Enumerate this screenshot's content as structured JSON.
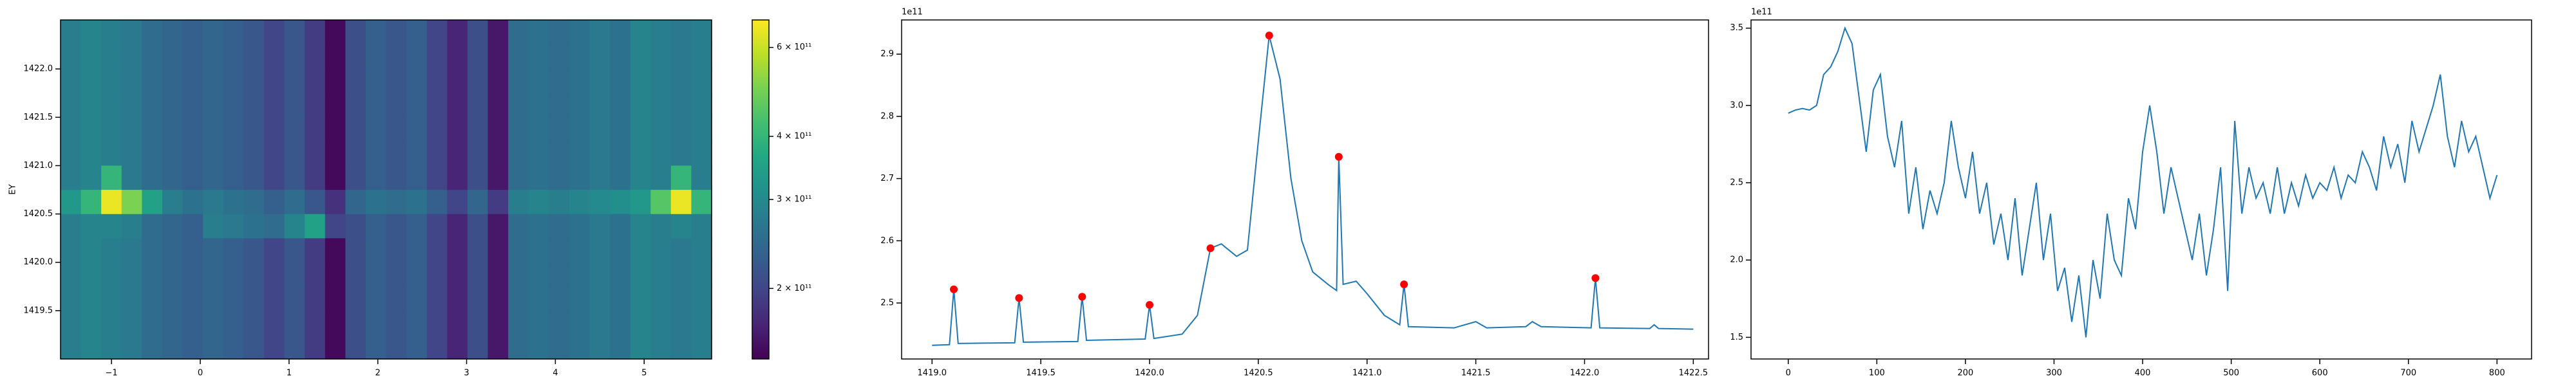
{
  "chart_data": [
    {
      "type": "heatmap",
      "ylabel": "EY",
      "xlim": [
        -1.574,
        5.76
      ],
      "ylim": [
        1419.0,
        1422.507
      ],
      "xticks": [
        {
          "value": -1,
          "label": "−1"
        },
        0,
        1,
        2,
        3,
        4,
        5
      ],
      "yticks": [
        1419.5,
        {
          "value": 1420,
          "label": "1420.0"
        },
        1420.5,
        {
          "value": 1421,
          "label": "1421.0"
        },
        1421.5,
        {
          "value": 1422,
          "label": "1422.0"
        }
      ],
      "colormap": "viridis",
      "zscale": "log",
      "zlim": [
        145000000000.0,
        680000000000.0
      ],
      "zticks": [
        {
          "value": 200000000000.0,
          "label": "2 × 10¹¹"
        },
        {
          "value": 300000000000.0,
          "label": "3 × 10¹¹"
        },
        {
          "value": 400000000000.0,
          "label": "4 × 10¹¹"
        },
        {
          "value": 600000000000.0,
          "label": "6 × 10¹¹"
        }
      ],
      "z": [
        [
          280000000000.0,
          290000000000.0,
          280000000000.0,
          270000000000.0,
          250000000000.0,
          240000000000.0,
          230000000000.0,
          240000000000.0,
          230000000000.0,
          220000000000.0,
          200000000000.0,
          220000000000.0,
          190000000000.0,
          150000000000.0,
          210000000000.0,
          230000000000.0,
          220000000000.0,
          230000000000.0,
          200000000000.0,
          170000000000.0,
          210000000000.0,
          160000000000.0,
          250000000000.0,
          260000000000.0,
          250000000000.0,
          260000000000.0,
          270000000000.0,
          260000000000.0,
          290000000000.0,
          280000000000.0,
          270000000000.0,
          280000000000.0
        ],
        [
          280000000000.0,
          290000000000.0,
          280000000000.0,
          270000000000.0,
          250000000000.0,
          240000000000.0,
          230000000000.0,
          240000000000.0,
          230000000000.0,
          220000000000.0,
          200000000000.0,
          220000000000.0,
          190000000000.0,
          150000000000.0,
          210000000000.0,
          230000000000.0,
          220000000000.0,
          230000000000.0,
          200000000000.0,
          170000000000.0,
          210000000000.0,
          160000000000.0,
          250000000000.0,
          260000000000.0,
          250000000000.0,
          260000000000.0,
          270000000000.0,
          260000000000.0,
          290000000000.0,
          280000000000.0,
          270000000000.0,
          280000000000.0
        ],
        [
          280000000000.0,
          290000000000.0,
          280000000000.0,
          270000000000.0,
          250000000000.0,
          240000000000.0,
          230000000000.0,
          240000000000.0,
          230000000000.0,
          220000000000.0,
          200000000000.0,
          220000000000.0,
          190000000000.0,
          150000000000.0,
          210000000000.0,
          230000000000.0,
          220000000000.0,
          230000000000.0,
          200000000000.0,
          170000000000.0,
          210000000000.0,
          160000000000.0,
          250000000000.0,
          260000000000.0,
          250000000000.0,
          260000000000.0,
          270000000000.0,
          260000000000.0,
          290000000000.0,
          280000000000.0,
          270000000000.0,
          280000000000.0
        ],
        [
          280000000000.0,
          290000000000.0,
          280000000000.0,
          270000000000.0,
          250000000000.0,
          240000000000.0,
          230000000000.0,
          240000000000.0,
          230000000000.0,
          220000000000.0,
          200000000000.0,
          220000000000.0,
          190000000000.0,
          150000000000.0,
          210000000000.0,
          230000000000.0,
          220000000000.0,
          230000000000.0,
          200000000000.0,
          170000000000.0,
          210000000000.0,
          160000000000.0,
          250000000000.0,
          260000000000.0,
          250000000000.0,
          260000000000.0,
          270000000000.0,
          260000000000.0,
          290000000000.0,
          280000000000.0,
          270000000000.0,
          280000000000.0
        ],
        [
          280000000000.0,
          290000000000.0,
          280000000000.0,
          270000000000.0,
          250000000000.0,
          240000000000.0,
          230000000000.0,
          240000000000.0,
          230000000000.0,
          220000000000.0,
          200000000000.0,
          220000000000.0,
          190000000000.0,
          150000000000.0,
          210000000000.0,
          230000000000.0,
          220000000000.0,
          230000000000.0,
          200000000000.0,
          170000000000.0,
          210000000000.0,
          160000000000.0,
          250000000000.0,
          260000000000.0,
          250000000000.0,
          260000000000.0,
          270000000000.0,
          260000000000.0,
          290000000000.0,
          280000000000.0,
          270000000000.0,
          280000000000.0
        ],
        [
          280000000000.0,
          290000000000.0,
          290000000000.0,
          280000000000.0,
          250000000000.0,
          240000000000.0,
          230000000000.0,
          280000000000.0,
          270000000000.0,
          260000000000.0,
          250000000000.0,
          290000000000.0,
          350000000000.0,
          200000000000.0,
          210000000000.0,
          230000000000.0,
          220000000000.0,
          230000000000.0,
          200000000000.0,
          170000000000.0,
          210000000000.0,
          160000000000.0,
          250000000000.0,
          260000000000.0,
          250000000000.0,
          260000000000.0,
          270000000000.0,
          260000000000.0,
          290000000000.0,
          280000000000.0,
          290000000000.0,
          280000000000.0
        ],
        [
          330000000000.0,
          400000000000.0,
          650000000000.0,
          500000000000.0,
          350000000000.0,
          280000000000.0,
          260000000000.0,
          270000000000.0,
          260000000000.0,
          250000000000.0,
          230000000000.0,
          250000000000.0,
          220000000000.0,
          180000000000.0,
          240000000000.0,
          260000000000.0,
          250000000000.0,
          260000000000.0,
          230000000000.0,
          200000000000.0,
          240000000000.0,
          190000000000.0,
          280000000000.0,
          290000000000.0,
          280000000000.0,
          290000000000.0,
          300000000000.0,
          310000000000.0,
          330000000000.0,
          450000000000.0,
          650000000000.0,
          400000000000.0
        ],
        [
          280000000000.0,
          290000000000.0,
          400000000000.0,
          270000000000.0,
          250000000000.0,
          240000000000.0,
          230000000000.0,
          240000000000.0,
          230000000000.0,
          220000000000.0,
          200000000000.0,
          220000000000.0,
          190000000000.0,
          150000000000.0,
          210000000000.0,
          230000000000.0,
          220000000000.0,
          230000000000.0,
          200000000000.0,
          170000000000.0,
          210000000000.0,
          160000000000.0,
          250000000000.0,
          260000000000.0,
          250000000000.0,
          260000000000.0,
          270000000000.0,
          260000000000.0,
          290000000000.0,
          280000000000.0,
          400000000000.0,
          280000000000.0
        ],
        [
          280000000000.0,
          290000000000.0,
          280000000000.0,
          270000000000.0,
          250000000000.0,
          240000000000.0,
          230000000000.0,
          240000000000.0,
          230000000000.0,
          220000000000.0,
          200000000000.0,
          220000000000.0,
          190000000000.0,
          150000000000.0,
          210000000000.0,
          230000000000.0,
          220000000000.0,
          230000000000.0,
          200000000000.0,
          170000000000.0,
          210000000000.0,
          160000000000.0,
          250000000000.0,
          260000000000.0,
          250000000000.0,
          260000000000.0,
          270000000000.0,
          260000000000.0,
          290000000000.0,
          280000000000.0,
          270000000000.0,
          280000000000.0
        ],
        [
          280000000000.0,
          290000000000.0,
          280000000000.0,
          270000000000.0,
          250000000000.0,
          240000000000.0,
          230000000000.0,
          240000000000.0,
          230000000000.0,
          220000000000.0,
          200000000000.0,
          220000000000.0,
          190000000000.0,
          150000000000.0,
          210000000000.0,
          230000000000.0,
          220000000000.0,
          230000000000.0,
          200000000000.0,
          170000000000.0,
          210000000000.0,
          160000000000.0,
          250000000000.0,
          260000000000.0,
          250000000000.0,
          260000000000.0,
          270000000000.0,
          260000000000.0,
          290000000000.0,
          280000000000.0,
          270000000000.0,
          280000000000.0
        ],
        [
          280000000000.0,
          290000000000.0,
          280000000000.0,
          270000000000.0,
          250000000000.0,
          240000000000.0,
          230000000000.0,
          240000000000.0,
          230000000000.0,
          220000000000.0,
          200000000000.0,
          220000000000.0,
          190000000000.0,
          150000000000.0,
          210000000000.0,
          230000000000.0,
          220000000000.0,
          230000000000.0,
          200000000000.0,
          170000000000.0,
          210000000000.0,
          160000000000.0,
          250000000000.0,
          260000000000.0,
          250000000000.0,
          260000000000.0,
          270000000000.0,
          260000000000.0,
          290000000000.0,
          280000000000.0,
          270000000000.0,
          280000000000.0
        ],
        [
          280000000000.0,
          290000000000.0,
          280000000000.0,
          270000000000.0,
          250000000000.0,
          240000000000.0,
          230000000000.0,
          240000000000.0,
          230000000000.0,
          220000000000.0,
          200000000000.0,
          220000000000.0,
          190000000000.0,
          150000000000.0,
          210000000000.0,
          230000000000.0,
          220000000000.0,
          230000000000.0,
          200000000000.0,
          170000000000.0,
          210000000000.0,
          160000000000.0,
          250000000000.0,
          260000000000.0,
          250000000000.0,
          260000000000.0,
          270000000000.0,
          260000000000.0,
          290000000000.0,
          280000000000.0,
          270000000000.0,
          280000000000.0
        ],
        [
          280000000000.0,
          290000000000.0,
          280000000000.0,
          270000000000.0,
          250000000000.0,
          240000000000.0,
          230000000000.0,
          240000000000.0,
          230000000000.0,
          220000000000.0,
          200000000000.0,
          220000000000.0,
          190000000000.0,
          150000000000.0,
          210000000000.0,
          230000000000.0,
          220000000000.0,
          230000000000.0,
          200000000000.0,
          170000000000.0,
          210000000000.0,
          160000000000.0,
          250000000000.0,
          260000000000.0,
          250000000000.0,
          260000000000.0,
          270000000000.0,
          260000000000.0,
          290000000000.0,
          280000000000.0,
          270000000000.0,
          280000000000.0
        ],
        [
          280000000000.0,
          290000000000.0,
          280000000000.0,
          270000000000.0,
          250000000000.0,
          240000000000.0,
          230000000000.0,
          240000000000.0,
          230000000000.0,
          220000000000.0,
          200000000000.0,
          220000000000.0,
          190000000000.0,
          150000000000.0,
          210000000000.0,
          230000000000.0,
          220000000000.0,
          230000000000.0,
          200000000000.0,
          170000000000.0,
          210000000000.0,
          160000000000.0,
          250000000000.0,
          260000000000.0,
          250000000000.0,
          260000000000.0,
          270000000000.0,
          260000000000.0,
          290000000000.0,
          280000000000.0,
          270000000000.0,
          280000000000.0
        ]
      ]
    },
    {
      "type": "line",
      "offset_text": "1e11",
      "xlim": [
        1418.86,
        1422.57
      ],
      "ylim": [
        2.41,
        2.955
      ],
      "xticks": [
        {
          "value": 1419,
          "label": "1419.0"
        },
        1419.5,
        {
          "value": 1420,
          "label": "1420.0"
        },
        1420.5,
        {
          "value": 1421,
          "label": "1421.0"
        },
        1421.5,
        {
          "value": 1422,
          "label": "1422.0"
        },
        1422.5
      ],
      "yticks": [
        2.5,
        2.6,
        2.7,
        2.8,
        2.9
      ],
      "x": [
        1419.0,
        1419.08,
        1419.1,
        1419.12,
        1419.38,
        1419.4,
        1419.42,
        1419.67,
        1419.69,
        1419.71,
        1419.98,
        1420.0,
        1420.02,
        1420.15,
        1420.22,
        1420.28,
        1420.33,
        1420.4,
        1420.45,
        1420.5,
        1420.55,
        1420.6,
        1420.65,
        1420.7,
        1420.75,
        1420.82,
        1420.86,
        1420.87,
        1420.89,
        1420.95,
        1421.0,
        1421.08,
        1421.15,
        1421.17,
        1421.19,
        1421.4,
        1421.5,
        1421.55,
        1421.73,
        1421.76,
        1421.8,
        1422.03,
        1422.05,
        1422.07,
        1422.3,
        1422.32,
        1422.34,
        1422.5
      ],
      "series": [
        {
          "color": "#1f77b4",
          "values": [
            2.432,
            2.433,
            2.522,
            2.435,
            2.436,
            2.508,
            2.437,
            2.438,
            2.51,
            2.44,
            2.442,
            2.497,
            2.443,
            2.45,
            2.48,
            2.588,
            2.595,
            2.575,
            2.585,
            2.76,
            2.93,
            2.86,
            2.7,
            2.6,
            2.55,
            2.53,
            2.52,
            2.735,
            2.53,
            2.535,
            2.515,
            2.48,
            2.465,
            2.53,
            2.462,
            2.46,
            2.47,
            2.46,
            2.462,
            2.47,
            2.462,
            2.46,
            2.54,
            2.46,
            2.459,
            2.465,
            2.459,
            2.458
          ]
        }
      ],
      "markers": {
        "color": "red",
        "x": [
          1419.1,
          1419.4,
          1419.69,
          1420.0,
          1420.28,
          1420.55,
          1420.87,
          1421.17,
          1422.05
        ],
        "y": [
          2.522,
          2.508,
          2.51,
          2.497,
          2.588,
          2.93,
          2.735,
          2.53,
          2.54
        ]
      }
    },
    {
      "type": "line",
      "offset_text": "1e11",
      "xlim": [
        -42,
        839
      ],
      "ylim": [
        1.36,
        3.553
      ],
      "xticks": [
        0,
        100,
        200,
        300,
        400,
        500,
        600,
        700,
        800
      ],
      "yticks": [
        1.5,
        {
          "value": 2,
          "label": "2.0"
        },
        2.5,
        {
          "value": 3,
          "label": "3.0"
        },
        3.5
      ],
      "x": [
        0,
        8,
        16,
        24,
        32,
        40,
        48,
        56,
        64,
        72,
        80,
        88,
        96,
        104,
        112,
        120,
        128,
        136,
        144,
        152,
        160,
        168,
        176,
        184,
        192,
        200,
        208,
        216,
        224,
        232,
        240,
        248,
        256,
        264,
        272,
        280,
        288,
        296,
        304,
        312,
        320,
        328,
        336,
        344,
        352,
        360,
        368,
        376,
        384,
        392,
        400,
        408,
        416,
        424,
        432,
        440,
        448,
        456,
        464,
        472,
        480,
        488,
        496,
        504,
        512,
        520,
        528,
        536,
        544,
        552,
        560,
        568,
        576,
        584,
        592,
        600,
        608,
        616,
        624,
        632,
        640,
        648,
        656,
        664,
        672,
        680,
        688,
        696,
        704,
        712,
        720,
        728,
        736,
        744,
        752,
        760,
        768,
        776,
        784,
        792,
        800
      ],
      "series": [
        {
          "color": "#1f77b4",
          "values": [
            2.95,
            2.97,
            2.98,
            2.97,
            3.0,
            3.2,
            3.25,
            3.35,
            3.5,
            3.4,
            3.05,
            2.7,
            3.1,
            3.2,
            2.8,
            2.6,
            2.9,
            2.3,
            2.6,
            2.2,
            2.45,
            2.3,
            2.5,
            2.9,
            2.6,
            2.4,
            2.7,
            2.3,
            2.5,
            2.1,
            2.3,
            2.0,
            2.4,
            1.9,
            2.2,
            2.5,
            2.0,
            2.3,
            1.8,
            1.95,
            1.6,
            1.9,
            1.5,
            2.0,
            1.75,
            2.3,
            2.0,
            1.9,
            2.4,
            2.2,
            2.7,
            3.0,
            2.7,
            2.3,
            2.6,
            2.4,
            2.2,
            2.0,
            2.3,
            1.9,
            2.2,
            2.6,
            1.8,
            2.9,
            2.3,
            2.6,
            2.4,
            2.5,
            2.3,
            2.6,
            2.3,
            2.5,
            2.35,
            2.55,
            2.4,
            2.5,
            2.45,
            2.6,
            2.4,
            2.55,
            2.5,
            2.7,
            2.6,
            2.45,
            2.8,
            2.6,
            2.75,
            2.5,
            2.9,
            2.7,
            2.85,
            3.0,
            3.2,
            2.8,
            2.6,
            2.9,
            2.7,
            2.8,
            2.6,
            2.4,
            2.55
          ]
        }
      ]
    }
  ]
}
